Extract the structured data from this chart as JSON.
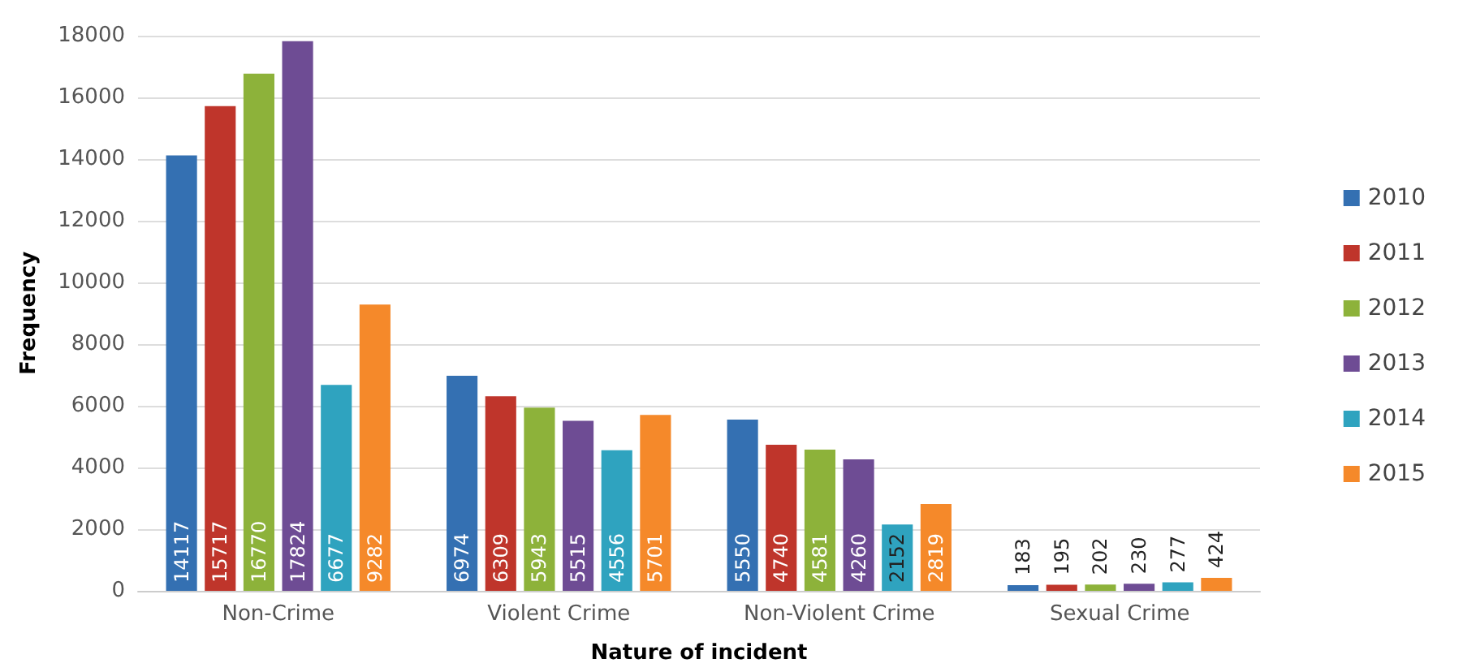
{
  "chart_data": {
    "type": "bar",
    "xlabel": "Nature of incident",
    "ylabel": "Frequency",
    "categories": [
      "Non-Crime",
      "Violent Crime",
      "Non-Violent Crime",
      "Sexual Crime"
    ],
    "series": [
      {
        "name": "2010",
        "color": "#3470b2",
        "values": [
          14117,
          6974,
          5550,
          183
        ]
      },
      {
        "name": "2011",
        "color": "#bf352b",
        "values": [
          15717,
          6309,
          4740,
          195
        ]
      },
      {
        "name": "2012",
        "color": "#8db23a",
        "values": [
          16770,
          5943,
          4581,
          202
        ]
      },
      {
        "name": "2013",
        "color": "#6e4c94",
        "values": [
          17824,
          5515,
          4260,
          230
        ]
      },
      {
        "name": "2014",
        "color": "#2fa3bf",
        "values": [
          6677,
          4556,
          2152,
          277
        ]
      },
      {
        "name": "2015",
        "color": "#f5892a",
        "values": [
          9282,
          5701,
          2819,
          424
        ]
      }
    ],
    "ylim": [
      0,
      18000
    ],
    "yticks": [
      0,
      2000,
      4000,
      6000,
      8000,
      10000,
      12000,
      14000,
      16000,
      18000
    ],
    "grid": "y",
    "legend": "right",
    "data_labels": true
  }
}
